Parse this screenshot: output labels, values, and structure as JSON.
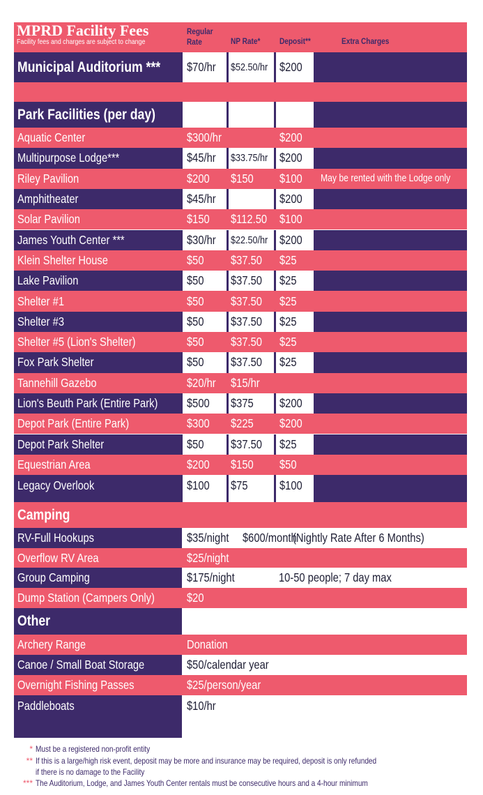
{
  "table": {
    "title": "MPRD Facility Fees",
    "subtitle": "Facility fees and charges are subject to change",
    "columns": [
      "Regular Rate",
      "NP Rate*",
      "Deposit**",
      "Extra Charges"
    ],
    "rows": [
      {
        "name": "Municipal Auditorium ***",
        "regular": "$70/hr",
        "np": "$52.50/hr",
        "deposit": "$200"
      },
      {
        "name": "Park Facilities (per day)"
      },
      {
        "name": "Aquatic Center",
        "regular": "$300/hr",
        "deposit": "$200"
      },
      {
        "name": "Multipurpose Lodge***",
        "regular": "$45/hr",
        "np": "$33.75/hr",
        "deposit": "$200"
      },
      {
        "name": "Riley Pavilion",
        "regular": "$200",
        "np": "$150",
        "deposit": "$100",
        "extra": "May be rented with the Lodge only"
      },
      {
        "name": "Amphitheater",
        "regular": "$45/hr",
        "deposit": "$200"
      },
      {
        "name": "Solar Pavilion",
        "regular": "$150",
        "np": "$112.50",
        "deposit": "$100"
      },
      {
        "name": "James Youth Center ***",
        "regular": "$30/hr",
        "np": "$22.50/hr",
        "deposit": "$200"
      },
      {
        "name": "Klein Shelter House",
        "regular": "$50",
        "np": "$37.50",
        "deposit": "$25"
      },
      {
        "name": "Lake Pavilion",
        "regular": "$50",
        "np": "$37.50",
        "deposit": "$25"
      },
      {
        "name": "Shelter #1",
        "regular": "$50",
        "np": "$37.50",
        "deposit": "$25"
      },
      {
        "name": "Shelter #3",
        "regular": "$50",
        "np": "$37.50",
        "deposit": "$25"
      },
      {
        "name": "Shelter #5 (Lion's Shelter)",
        "regular": "$50",
        "np": "$37.50",
        "deposit": "$25"
      },
      {
        "name": "Fox Park Shelter",
        "regular": "$50",
        "np": "$37.50",
        "deposit": "$25"
      },
      {
        "name": "Tannehill Gazebo",
        "regular": "$20/hr",
        "np": "$15/hr"
      },
      {
        "name": "Lion's Beuth Park (Entire Park)",
        "regular": "$500",
        "np": "$375",
        "deposit": "$200"
      },
      {
        "name": "Depot Park (Entire Park)",
        "regular": "$300",
        "np": "$225",
        "deposit": "$200"
      },
      {
        "name": "Depot Park Shelter",
        "regular": "$50",
        "np": "$37.50",
        "deposit": "$25"
      },
      {
        "name": "Equestrian Area",
        "regular": "$200",
        "np": "$150",
        "deposit": "$50"
      },
      {
        "name": "Legacy Overlook",
        "regular": "$100",
        "np": "$75",
        "deposit": "$100"
      },
      {
        "name": "Camping"
      },
      {
        "name": "RV-Full Hookups",
        "cells": [
          "$35/night",
          "$600/month",
          "(Nightly Rate After 6 Months)"
        ]
      },
      {
        "name": "Overflow RV Area",
        "cells": [
          "$25/night"
        ]
      },
      {
        "name": "Group Camping",
        "cells": [
          "$175/night",
          "10-50 people; 7 day max"
        ]
      },
      {
        "name": "Dump Station (Campers Only)",
        "cells": [
          "$20"
        ]
      },
      {
        "name": "Other"
      },
      {
        "name": "Archery Range",
        "cells": [
          "Donation"
        ]
      },
      {
        "name": "Canoe / Small Boat Storage",
        "cells": [
          "$50/calendar year"
        ]
      },
      {
        "name": "Overnight Fishing Passes",
        "cells": [
          "$25/person/year"
        ]
      },
      {
        "name": "Paddleboats",
        "cells": [
          "$10/hr"
        ]
      }
    ],
    "footnotes": [
      {
        "mark": "*",
        "text": "Must be a registered non-profit entity"
      },
      {
        "mark": "**",
        "text": "If this is a large/high risk event, deposit may be more and insurance may be required, deposit is only refunded if there is no damage to the Facility"
      },
      {
        "mark": "***",
        "text": "The Auditorium, Lodge, and James Youth Center rentals must be consecutive hours and a 4-hour minimum"
      }
    ]
  }
}
